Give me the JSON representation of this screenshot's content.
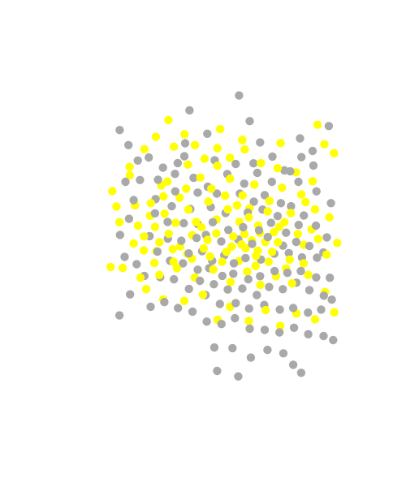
{
  "chart_data": {
    "type": "scatter",
    "title": "",
    "xlabel": "",
    "ylabel": "",
    "xlim": [
      0,
      100
    ],
    "ylim": [
      0,
      100
    ],
    "grid": false,
    "axes_visible": false,
    "legend": "none",
    "series": [
      {
        "color": "#ffff00",
        "points": [
          [
            31.5,
            75.6
          ],
          [
            48.4,
            81.3
          ],
          [
            56.5,
            77.8
          ],
          [
            70.5,
            76.8
          ],
          [
            84.0,
            82.7
          ],
          [
            86.5,
            76.4
          ],
          [
            90.0,
            73.5
          ],
          [
            9.0,
            61.2
          ],
          [
            15.3,
            69.0
          ],
          [
            27.7,
            59.5
          ],
          [
            33.6,
            59.1
          ],
          [
            36.0,
            62.0
          ],
          [
            41.2,
            65.6
          ],
          [
            47.4,
            69.4
          ],
          [
            52.0,
            65.2
          ],
          [
            56.6,
            59.8
          ],
          [
            60.9,
            63.3
          ],
          [
            66.4,
            58.0
          ],
          [
            71.0,
            62.3
          ],
          [
            78.1,
            60.1
          ],
          [
            83.1,
            55.3
          ],
          [
            88.3,
            52.7
          ],
          [
            91.2,
            44.4
          ],
          [
            87.3,
            40.6
          ],
          [
            79.0,
            43.8
          ],
          [
            73.8,
            39.0
          ],
          [
            69.5,
            44.6
          ],
          [
            62.2,
            41.9
          ],
          [
            57.3,
            47.3
          ],
          [
            52.6,
            43.2
          ],
          [
            47.0,
            47.5
          ],
          [
            42.4,
            42.6
          ],
          [
            38.2,
            46.9
          ],
          [
            33.8,
            43.3
          ],
          [
            29.6,
            47.4
          ],
          [
            25.1,
            41.7
          ],
          [
            20.6,
            46.5
          ],
          [
            16.8,
            44.2
          ],
          [
            19.3,
            33.1
          ],
          [
            26.2,
            34.0
          ],
          [
            32.6,
            36.2
          ],
          [
            39.1,
            33.2
          ],
          [
            45.9,
            35.8
          ],
          [
            52.2,
            31.7
          ],
          [
            58.3,
            35.1
          ],
          [
            63.1,
            30.8
          ],
          [
            68.8,
            33.6
          ],
          [
            74.7,
            31.3
          ],
          [
            80.6,
            34.0
          ],
          [
            86.7,
            28.5
          ],
          [
            90.1,
            21.9
          ],
          [
            83.1,
            19.6
          ],
          [
            76.3,
            21.5
          ],
          [
            70.4,
            17.5
          ],
          [
            65.0,
            22.6
          ],
          [
            58.9,
            19.1
          ],
          [
            52.0,
            23.7
          ],
          [
            47.5,
            19.5
          ],
          [
            42.1,
            27.6
          ],
          [
            35.3,
            25.6
          ],
          [
            27.6,
            26.1
          ],
          [
            21.4,
            29.4
          ],
          [
            12.8,
            36.3
          ],
          [
            8.4,
            36.6
          ],
          [
            11.6,
            51.1
          ],
          [
            17.3,
            56.6
          ],
          [
            22.8,
            53.2
          ],
          [
            26.9,
            63.0
          ],
          [
            36.6,
            69.8
          ],
          [
            39.6,
            51.2
          ],
          [
            44.1,
            57.8
          ],
          [
            51.2,
            55.3
          ],
          [
            55.5,
            51.2
          ],
          [
            59.1,
            55.6
          ],
          [
            62.3,
            50.0
          ],
          [
            65.8,
            54.6
          ],
          [
            68.0,
            47.9
          ],
          [
            71.9,
            51.1
          ],
          [
            76.8,
            47.3
          ],
          [
            81.8,
            48.8
          ],
          [
            84.2,
            45.7
          ],
          [
            78.9,
            37.8
          ],
          [
            72.5,
            36.1
          ],
          [
            66.1,
            38.3
          ],
          [
            61.4,
            37.0
          ],
          [
            55.2,
            38.5
          ],
          [
            49.1,
            38.3
          ],
          [
            44.7,
            40.0
          ],
          [
            38.1,
            39.3
          ],
          [
            31.4,
            38.3
          ],
          [
            24.4,
            37.9
          ],
          [
            18.4,
            50.0
          ],
          [
            23.1,
            57.3
          ],
          [
            29.1,
            64.3
          ],
          [
            45.2,
            62.0
          ],
          [
            50.2,
            59.7
          ],
          [
            54.6,
            56.6
          ],
          [
            58.9,
            52.7
          ],
          [
            62.9,
            47.6
          ],
          [
            64.9,
            44.7
          ],
          [
            60.0,
            45.2
          ],
          [
            56.2,
            43.9
          ],
          [
            50.7,
            41.5
          ],
          [
            47.1,
            52.0
          ],
          [
            41.6,
            49.5
          ],
          [
            36.8,
            55.2
          ],
          [
            32.1,
            50.9
          ],
          [
            28.1,
            53.9
          ],
          [
            24.6,
            49.6
          ],
          [
            20.5,
            42.0
          ],
          [
            26.2,
            44.6
          ],
          [
            31.1,
            42.4
          ],
          [
            36.4,
            40.9
          ],
          [
            43.8,
            45.4
          ],
          [
            53.2,
            46.5
          ],
          [
            57.7,
            42.7
          ],
          [
            61.5,
            40.2
          ],
          [
            67.4,
            41.5
          ],
          [
            70.0,
            49.6
          ],
          [
            74.2,
            54.1
          ],
          [
            79.6,
            57.6
          ],
          [
            82.2,
            64.4
          ],
          [
            76.1,
            67.3
          ],
          [
            69.4,
            68.6
          ],
          [
            63.3,
            70.3
          ],
          [
            57.4,
            74.7
          ],
          [
            52.0,
            72.0
          ],
          [
            47.4,
            75.1
          ],
          [
            42.7,
            71.7
          ],
          [
            39.2,
            76.1
          ],
          [
            35.4,
            79.6
          ],
          [
            29.5,
            84.2
          ],
          [
            24.9,
            78.8
          ],
          [
            20.7,
            74.8
          ],
          [
            15.4,
            66.3
          ],
          [
            10.5,
            56.2
          ]
        ]
      },
      {
        "color": "#a9a9a9",
        "points": [
          [
            55.3,
            92.2
          ],
          [
            37.2,
            87.4
          ],
          [
            59.2,
            83.9
          ],
          [
            88.1,
            82.3
          ],
          [
            43.7,
            79.8
          ],
          [
            35.6,
            76.7
          ],
          [
            63.0,
            77.0
          ],
          [
            77.6,
            78.3
          ],
          [
            82.2,
            74.2
          ],
          [
            22.3,
            72.1
          ],
          [
            32.9,
            70.3
          ],
          [
            46.4,
            71.2
          ],
          [
            54.1,
            70.0
          ],
          [
            60.6,
            70.2
          ],
          [
            67.5,
            72.4
          ],
          [
            74.0,
            67.6
          ],
          [
            78.1,
            72.2
          ],
          [
            82.5,
            69.5
          ],
          [
            31.9,
            66.8
          ],
          [
            38.7,
            65.5
          ],
          [
            43.9,
            62.6
          ],
          [
            51.0,
            66.7
          ],
          [
            57.2,
            63.6
          ],
          [
            62.0,
            67.1
          ],
          [
            67.3,
            64.2
          ],
          [
            71.9,
            67.9
          ],
          [
            25.7,
            64.9
          ],
          [
            32.0,
            61.1
          ],
          [
            40.2,
            60.7
          ],
          [
            47.2,
            60.4
          ],
          [
            55.6,
            60.4
          ],
          [
            60.7,
            57.8
          ],
          [
            64.7,
            59.9
          ],
          [
            70.6,
            57.3
          ],
          [
            77.0,
            64.2
          ],
          [
            83.6,
            61.1
          ],
          [
            88.9,
            57.3
          ],
          [
            19.1,
            64.8
          ],
          [
            24.8,
            58.6
          ],
          [
            30.7,
            56.3
          ],
          [
            37.5,
            55.4
          ],
          [
            45.0,
            56.0
          ],
          [
            50.4,
            54.1
          ],
          [
            58.5,
            54.2
          ],
          [
            63.9,
            55.2
          ],
          [
            69.4,
            53.1
          ],
          [
            74.3,
            56.3
          ],
          [
            79.0,
            53.3
          ],
          [
            83.4,
            50.0
          ],
          [
            87.4,
            46.2
          ],
          [
            24.6,
            54.0
          ],
          [
            29.2,
            51.2
          ],
          [
            35.1,
            50.8
          ],
          [
            40.2,
            50.5
          ],
          [
            45.7,
            51.1
          ],
          [
            51.4,
            48.6
          ],
          [
            56.8,
            49.5
          ],
          [
            62.6,
            48.5
          ],
          [
            67.0,
            50.9
          ],
          [
            72.5,
            47.7
          ],
          [
            77.1,
            50.2
          ],
          [
            29.3,
            45.8
          ],
          [
            34.2,
            45.1
          ],
          [
            39.8,
            46.0
          ],
          [
            43.2,
            47.0
          ],
          [
            48.8,
            44.9
          ],
          [
            55.0,
            45.5
          ],
          [
            60.1,
            44.1
          ],
          [
            65.8,
            46.3
          ],
          [
            71.4,
            43.5
          ],
          [
            76.2,
            44.7
          ],
          [
            81.0,
            43.4
          ],
          [
            86.1,
            41.3
          ],
          [
            36.9,
            41.0
          ],
          [
            41.8,
            41.7
          ],
          [
            45.5,
            38.6
          ],
          [
            49.9,
            40.4
          ],
          [
            53.4,
            37.8
          ],
          [
            57.7,
            39.5
          ],
          [
            63.3,
            39.0
          ],
          [
            68.2,
            40.9
          ],
          [
            73.5,
            41.1
          ],
          [
            78.3,
            39.7
          ],
          [
            83.8,
            39.6
          ],
          [
            40.2,
            35.7
          ],
          [
            44.4,
            36.2
          ],
          [
            49.2,
            33.7
          ],
          [
            53.2,
            34.4
          ],
          [
            58.7,
            32.6
          ],
          [
            63.0,
            33.6
          ],
          [
            68.3,
            35.3
          ],
          [
            73.0,
            34.7
          ],
          [
            77.9,
            35.3
          ],
          [
            83.5,
            33.2
          ],
          [
            88.5,
            33.1
          ],
          [
            25.5,
            41.6
          ],
          [
            30.1,
            38.6
          ],
          [
            34.8,
            37.8
          ],
          [
            41.0,
            32.1
          ],
          [
            46.1,
            31.0
          ],
          [
            51.2,
            29.3
          ],
          [
            56.5,
            29.6
          ],
          [
            61.8,
            27.5
          ],
          [
            66.3,
            30.1
          ],
          [
            71.3,
            29.4
          ],
          [
            76.3,
            31.5
          ],
          [
            81.0,
            29.1
          ],
          [
            86.3,
            27.3
          ],
          [
            20.7,
            33.7
          ],
          [
            26.5,
            33.3
          ],
          [
            31.5,
            32.6
          ],
          [
            37.0,
            29.5
          ],
          [
            43.1,
            27.5
          ],
          [
            48.3,
            24.6
          ],
          [
            54.1,
            24.9
          ],
          [
            59.0,
            23.1
          ],
          [
            64.5,
            24.3
          ],
          [
            70.2,
            22.8
          ],
          [
            75.1,
            23.3
          ],
          [
            80.5,
            21.8
          ],
          [
            85.3,
            22.8
          ],
          [
            89.2,
            26.0
          ],
          [
            11.6,
            20.9
          ],
          [
            15.5,
            27.7
          ],
          [
            23.0,
            23.7
          ],
          [
            28.0,
            25.2
          ],
          [
            33.0,
            23.3
          ],
          [
            38.3,
            22.1
          ],
          [
            43.5,
            18.9
          ],
          [
            48.9,
            18.1
          ],
          [
            53.8,
            20.0
          ],
          [
            59.2,
            16.6
          ],
          [
            64.7,
            16.2
          ],
          [
            70.1,
            15.4
          ],
          [
            75.4,
            16.9
          ],
          [
            80.6,
            14.8
          ],
          [
            86.2,
            14.2
          ],
          [
            89.7,
            12.9
          ],
          [
            46.3,
            10.5
          ],
          [
            52.9,
            10.3
          ],
          [
            59.6,
            7.2
          ],
          [
            65.7,
            9.7
          ],
          [
            71.5,
            8.6
          ],
          [
            75.1,
            4.9
          ],
          [
            78.0,
            2.3
          ],
          [
            47.3,
            2.9
          ],
          [
            55.0,
            1.1
          ],
          [
            11.7,
            81.0
          ],
          [
            14.9,
            76.1
          ],
          [
            18.3,
            71.1
          ],
          [
            13.8,
            64.2
          ],
          [
            11.8,
            47.0
          ],
          [
            15.1,
            52.2
          ],
          [
            16.8,
            58.3
          ],
          [
            13.5,
            39.9
          ],
          [
            17.9,
            37.5
          ],
          [
            22.6,
            46.6
          ],
          [
            27.5,
            68.8
          ],
          [
            35.3,
            72.5
          ]
        ]
      }
    ]
  }
}
